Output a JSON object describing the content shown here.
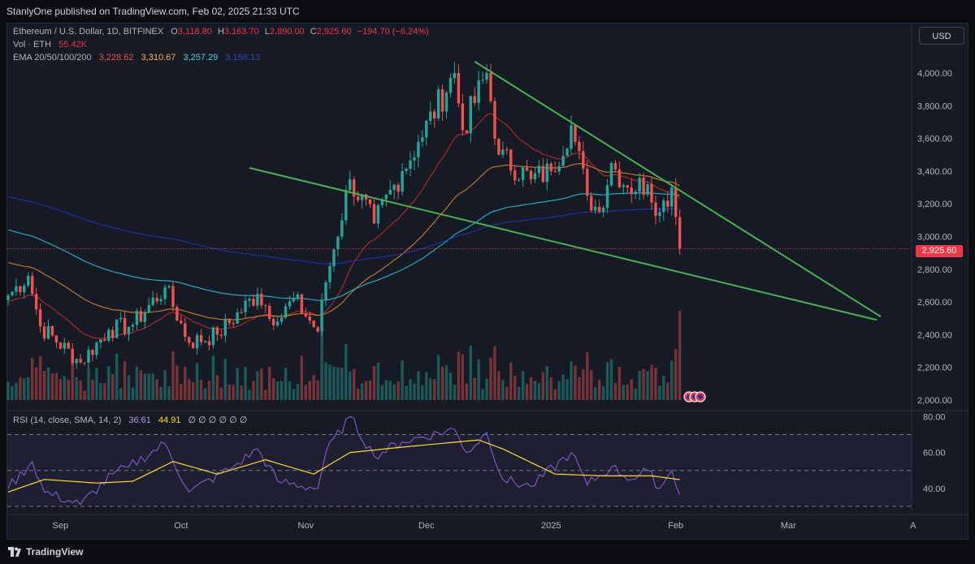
{
  "header": {
    "publish_line": "StanlyOne published on TradingView.com, Feb 02, 2025 21:33 UTC"
  },
  "legend": {
    "symbol": "Ethereum / U.S. Dollar, 1D, BITFINEX",
    "ohlc": {
      "o_label": "O",
      "o": "3,118.80",
      "h_label": "H",
      "h": "3,163.70",
      "l_label": "L",
      "l": "2,890.00",
      "c_label": "C",
      "c": "2,925.60",
      "change": "−194.70 (−6.24%)"
    },
    "vol_label": "Vol · ETH",
    "vol_value": "55.42K",
    "ema_label": "EMA 20/50/100/200",
    "ema_values": [
      "3,228.62",
      "3,310.67",
      "3,257.29",
      "3,158.13"
    ],
    "rsi_label": "RSI (14, close, SMA, 14, 2)",
    "rsi_values": [
      "36.61",
      "44.91"
    ],
    "rsi_extra": "∅ ∅ ∅ ∅ ∅ ∅"
  },
  "currency_button": "USD",
  "last_price_tag": "2,925.60",
  "footer": {
    "brand": "TradingView"
  },
  "colors": {
    "up": "#26a69a",
    "down": "#ef5350",
    "ema20": "#c42b2b",
    "ema50": "#e0842d",
    "ema100": "#26c6da",
    "ema200": "#2235b5",
    "trend": "#4caf50",
    "rsi": "#7e57c2",
    "rsi_ma": "#fdd835"
  },
  "chart_data": [
    {
      "type": "candlestick",
      "title": "Ethereum / U.S. Dollar, 1D, BITFINEX",
      "ylim": [
        1960,
        4160
      ],
      "y_ticks": [
        "4,000.00",
        "3,800.00",
        "3,600.00",
        "3,400.00",
        "3,200.00",
        "3,000.00",
        "2,800.00",
        "2,600.00",
        "2,400.00",
        "2,200.00",
        "2,000.00"
      ],
      "x_ticks": [
        "Sep",
        "Oct",
        "Nov",
        "Dec",
        "2025",
        "Feb",
        "Mar",
        "A"
      ],
      "price_anchors": [
        {
          "date": "2024-08-19",
          "close": 2640
        },
        {
          "date": "2024-08-24",
          "close": 2760
        },
        {
          "date": "2024-08-27",
          "close": 2450
        },
        {
          "date": "2024-09-06",
          "close": 2230
        },
        {
          "date": "2024-09-13",
          "close": 2430
        },
        {
          "date": "2024-09-19",
          "close": 2460
        },
        {
          "date": "2024-09-27",
          "close": 2690
        },
        {
          "date": "2024-10-03",
          "close": 2350
        },
        {
          "date": "2024-10-10",
          "close": 2400
        },
        {
          "date": "2024-10-20",
          "close": 2650
        },
        {
          "date": "2024-10-25",
          "close": 2480
        },
        {
          "date": "2024-10-29",
          "close": 2620
        },
        {
          "date": "2024-11-04",
          "close": 2420
        },
        {
          "date": "2024-11-06",
          "close": 2720
        },
        {
          "date": "2024-11-12",
          "close": 3350
        },
        {
          "date": "2024-11-18",
          "close": 3080
        },
        {
          "date": "2024-11-25",
          "close": 3400
        },
        {
          "date": "2024-11-29",
          "close": 3580
        },
        {
          "date": "2024-12-08",
          "close": 4000
        },
        {
          "date": "2024-12-10",
          "close": 3650
        },
        {
          "date": "2024-12-16",
          "close": 4000
        },
        {
          "date": "2024-12-19",
          "close": 3500
        },
        {
          "date": "2024-12-27",
          "close": 3350
        },
        {
          "date": "2025-01-01",
          "close": 3400
        },
        {
          "date": "2025-01-06",
          "close": 3680
        },
        {
          "date": "2025-01-10",
          "close": 3250
        },
        {
          "date": "2025-01-13",
          "close": 3150
        },
        {
          "date": "2025-01-16",
          "close": 3450
        },
        {
          "date": "2025-01-20",
          "close": 3300
        },
        {
          "date": "2025-01-25",
          "close": 3320
        },
        {
          "date": "2025-01-28",
          "close": 3150
        },
        {
          "date": "2025-01-31",
          "close": 3300
        },
        {
          "date": "2025-02-01",
          "close": 3120
        },
        {
          "date": "2025-02-02",
          "close": 2925.6
        }
      ],
      "last_candle": {
        "date": "2025-02-02",
        "open": 3118.8,
        "high": 3163.7,
        "low": 2890.0,
        "close": 2925.6
      },
      "ema_endpoints": {
        "ema20": 3228.62,
        "ema50": 3310.67,
        "ema100": 3257.29,
        "ema200": 3158.13
      },
      "trendlines": [
        {
          "name": "upper",
          "points": [
            {
              "date": "2024-12-13",
              "price": 4070
            },
            {
              "date": "2025-03-24",
              "price": 2510
            }
          ]
        },
        {
          "name": "lower",
          "points": [
            {
              "date": "2024-10-18",
              "price": 3420
            },
            {
              "date": "2025-03-23",
              "price": 2490
            }
          ]
        }
      ],
      "volume_peak": {
        "date": "2025-02-02",
        "value_k": 55.42
      }
    },
    {
      "type": "line",
      "title": "RSI (14, close, SMA, 14, 2)",
      "ylim": [
        22,
        85
      ],
      "y_ticks": [
        "80.00",
        "60.00",
        "40.00"
      ],
      "bands": [
        30,
        50,
        70
      ],
      "rsi_anchors": [
        {
          "date": "2024-08-19",
          "value": 40
        },
        {
          "date": "2024-08-25",
          "value": 55
        },
        {
          "date": "2024-08-28",
          "value": 38
        },
        {
          "date": "2024-09-06",
          "value": 31
        },
        {
          "date": "2024-09-14",
          "value": 48
        },
        {
          "date": "2024-09-18",
          "value": 52
        },
        {
          "date": "2024-09-27",
          "value": 65
        },
        {
          "date": "2024-10-03",
          "value": 38
        },
        {
          "date": "2024-10-14",
          "value": 52
        },
        {
          "date": "2024-10-20",
          "value": 62
        },
        {
          "date": "2024-10-25",
          "value": 44
        },
        {
          "date": "2024-11-04",
          "value": 40
        },
        {
          "date": "2024-11-06",
          "value": 60
        },
        {
          "date": "2024-11-12",
          "value": 80
        },
        {
          "date": "2024-11-18",
          "value": 58
        },
        {
          "date": "2024-11-25",
          "value": 66
        },
        {
          "date": "2024-12-08",
          "value": 73
        },
        {
          "date": "2024-12-11",
          "value": 60
        },
        {
          "date": "2024-12-16",
          "value": 71
        },
        {
          "date": "2024-12-20",
          "value": 45
        },
        {
          "date": "2024-12-27",
          "value": 41
        },
        {
          "date": "2025-01-06",
          "value": 60
        },
        {
          "date": "2025-01-10",
          "value": 42
        },
        {
          "date": "2025-01-16",
          "value": 52
        },
        {
          "date": "2025-01-21",
          "value": 45
        },
        {
          "date": "2025-01-25",
          "value": 50
        },
        {
          "date": "2025-01-28",
          "value": 40
        },
        {
          "date": "2025-01-31",
          "value": 50
        },
        {
          "date": "2025-02-02",
          "value": 36.61
        }
      ],
      "rsi_ma_anchors": [
        {
          "date": "2024-08-19",
          "value": 38
        },
        {
          "date": "2024-08-28",
          "value": 45
        },
        {
          "date": "2024-09-10",
          "value": 43
        },
        {
          "date": "2024-09-19",
          "value": 44
        },
        {
          "date": "2024-09-29",
          "value": 55
        },
        {
          "date": "2024-10-10",
          "value": 48
        },
        {
          "date": "2024-10-22",
          "value": 56
        },
        {
          "date": "2024-11-03",
          "value": 48
        },
        {
          "date": "2024-11-12",
          "value": 60
        },
        {
          "date": "2024-11-25",
          "value": 63
        },
        {
          "date": "2024-12-14",
          "value": 67
        },
        {
          "date": "2024-12-20",
          "value": 62
        },
        {
          "date": "2025-01-02",
          "value": 48
        },
        {
          "date": "2025-01-14",
          "value": 47
        },
        {
          "date": "2025-01-26",
          "value": 47
        },
        {
          "date": "2025-02-02",
          "value": 44.91
        }
      ]
    }
  ]
}
